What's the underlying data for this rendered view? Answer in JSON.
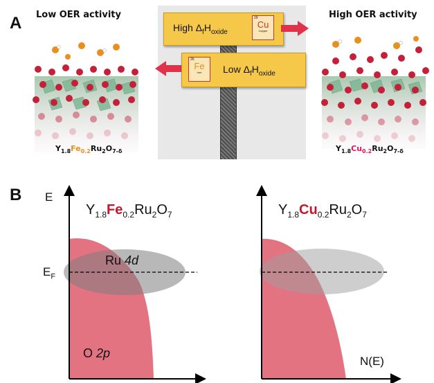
{
  "panel_a": {
    "letter": "A",
    "left_title": "Low OER activity",
    "right_title": "High OER activity",
    "left_formula": {
      "y": "Y",
      "y_sub": "1.8",
      "dopant": "Fe",
      "dopant_sub": "0.2",
      "rest": "Ru",
      "rest_sub": "2",
      "o": "O",
      "o_sub": "7-δ"
    },
    "right_formula": {
      "y": "Y",
      "y_sub": "1.8",
      "dopant": "Cu",
      "dopant_sub": "0.2",
      "rest": "Ru",
      "rest_sub": "2",
      "o": "O",
      "o_sub": "7-δ"
    },
    "signpost": {
      "high_label": "High Δ",
      "high_label_f": "f",
      "high_label_h": "H",
      "high_label_sub": "oxide",
      "low_label": "Low Δ",
      "low_label_f": "f",
      "low_label_h": "H",
      "low_label_sub": "oxide",
      "cu_box": {
        "number": "29",
        "symbol": "Cu",
        "name": "Copper"
      },
      "fe_box": {
        "number": "26",
        "symbol": "Fe",
        "name": "Iron"
      }
    },
    "colors": {
      "fe": "#e8901e",
      "cu": "#d6185e",
      "sign": "#f6c84a",
      "arrow": "#e0334a",
      "oxygen": "#c4203a"
    }
  },
  "panel_b": {
    "letter": "B",
    "y_axis": "E",
    "x_axis": "N(E)",
    "fermi": "E",
    "fermi_sub": "F",
    "ru_band": "Ru ",
    "ru_band_orbital": "4d",
    "o_band": "O ",
    "o_band_orbital": "2p",
    "left_formula": {
      "y": "Y",
      "y_sub": "1.8",
      "dopant": "Fe",
      "dopant_sub": "0.2",
      "rest": "Ru",
      "rest_sub": "2",
      "o": "O",
      "o_sub": "7"
    },
    "right_formula": {
      "y": "Y",
      "y_sub": "1.8",
      "dopant": "Cu",
      "dopant_sub": "0.2",
      "rest": "Ru",
      "rest_sub": "2",
      "o": "O",
      "o_sub": "7"
    },
    "colors": {
      "dopant": "#c0182e",
      "o_band": "#de5a6a",
      "ru_band": "#a9a9a9"
    }
  }
}
